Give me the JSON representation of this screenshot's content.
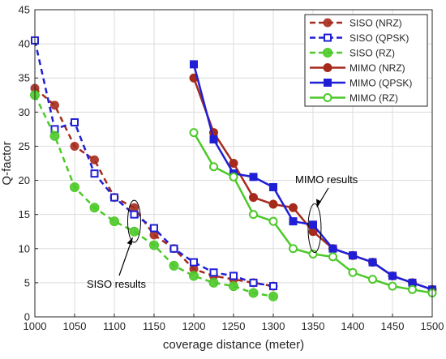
{
  "chart_data": {
    "type": "line",
    "title": "",
    "xlabel": "coverage distance (meter)",
    "ylabel": "Q-factor",
    "xlim": [
      1000,
      1500
    ],
    "ylim": [
      0,
      45
    ],
    "xticks": [
      1000,
      1050,
      1100,
      1150,
      1200,
      1250,
      1300,
      1350,
      1400,
      1450,
      1500
    ],
    "yticks": [
      0,
      5,
      10,
      15,
      20,
      25,
      30,
      35,
      40,
      45
    ],
    "grid": true,
    "legend_position": "top-right",
    "series": [
      {
        "name": "SISO (NRZ)",
        "color": "#a52a1c",
        "dash": "dashed",
        "marker": "circle",
        "x": [
          1000,
          1025,
          1050,
          1075,
          1100,
          1125,
          1150,
          1175,
          1200,
          1225,
          1250,
          1275,
          1300
        ],
        "y": [
          33.5,
          31,
          25,
          23,
          17.5,
          16,
          12,
          10,
          7,
          6,
          5.5,
          5,
          4.5
        ]
      },
      {
        "name": "SISO (QPSK)",
        "color": "#1f1fd6",
        "dash": "dashed",
        "marker": "square",
        "x": [
          1000,
          1025,
          1050,
          1075,
          1100,
          1125,
          1150,
          1175,
          1200,
          1225,
          1250,
          1275,
          1300
        ],
        "y": [
          40.5,
          27.5,
          28.5,
          21,
          17.5,
          15,
          13,
          10,
          8,
          6.5,
          6,
          5,
          4.5
        ]
      },
      {
        "name": "SISO (RZ)",
        "color": "#4cc928",
        "dash": "dashed",
        "marker": "circle",
        "x": [
          1000,
          1025,
          1050,
          1075,
          1100,
          1125,
          1150,
          1175,
          1200,
          1225,
          1250,
          1275,
          1300
        ],
        "y": [
          32.5,
          26.5,
          19,
          16,
          14,
          12.5,
          10.5,
          7.5,
          6,
          5,
          4.5,
          3.5,
          3
        ]
      },
      {
        "name": "MIMO (NRZ)",
        "color": "#a52a1c",
        "dash": "solid",
        "marker": "circle",
        "x": [
          1200,
          1225,
          1250,
          1275,
          1300,
          1325,
          1350,
          1375,
          1400,
          1425,
          1450,
          1475,
          1500
        ],
        "y": [
          35,
          27,
          22.5,
          17.5,
          16.5,
          16,
          12.5,
          10,
          9,
          8,
          6,
          5,
          4
        ]
      },
      {
        "name": "MIMO (QPSK)",
        "color": "#1f1fd6",
        "dash": "solid",
        "marker": "square",
        "x": [
          1200,
          1225,
          1250,
          1275,
          1300,
          1325,
          1350,
          1375,
          1400,
          1425,
          1450,
          1475,
          1500
        ],
        "y": [
          37,
          26,
          21,
          20.5,
          19,
          14,
          13.5,
          10,
          9,
          8,
          6,
          5,
          4
        ]
      },
      {
        "name": "MIMO (RZ)",
        "color": "#4cc928",
        "dash": "solid",
        "marker": "circle",
        "x": [
          1200,
          1225,
          1250,
          1275,
          1300,
          1325,
          1350,
          1375,
          1400,
          1425,
          1450,
          1475,
          1500
        ],
        "y": [
          27,
          22,
          20.5,
          15,
          14,
          10,
          9.2,
          8.8,
          6.5,
          5.5,
          4.5,
          4,
          3.5
        ]
      }
    ],
    "annotations": [
      {
        "text": "SISO results",
        "ellipse_center": [
          1125,
          14
        ],
        "ellipse_radius": [
          7,
          3
        ]
      },
      {
        "text": "MIMO results",
        "ellipse_center": [
          1352,
          13
        ],
        "ellipse_radius": [
          7,
          3.5
        ]
      }
    ]
  }
}
